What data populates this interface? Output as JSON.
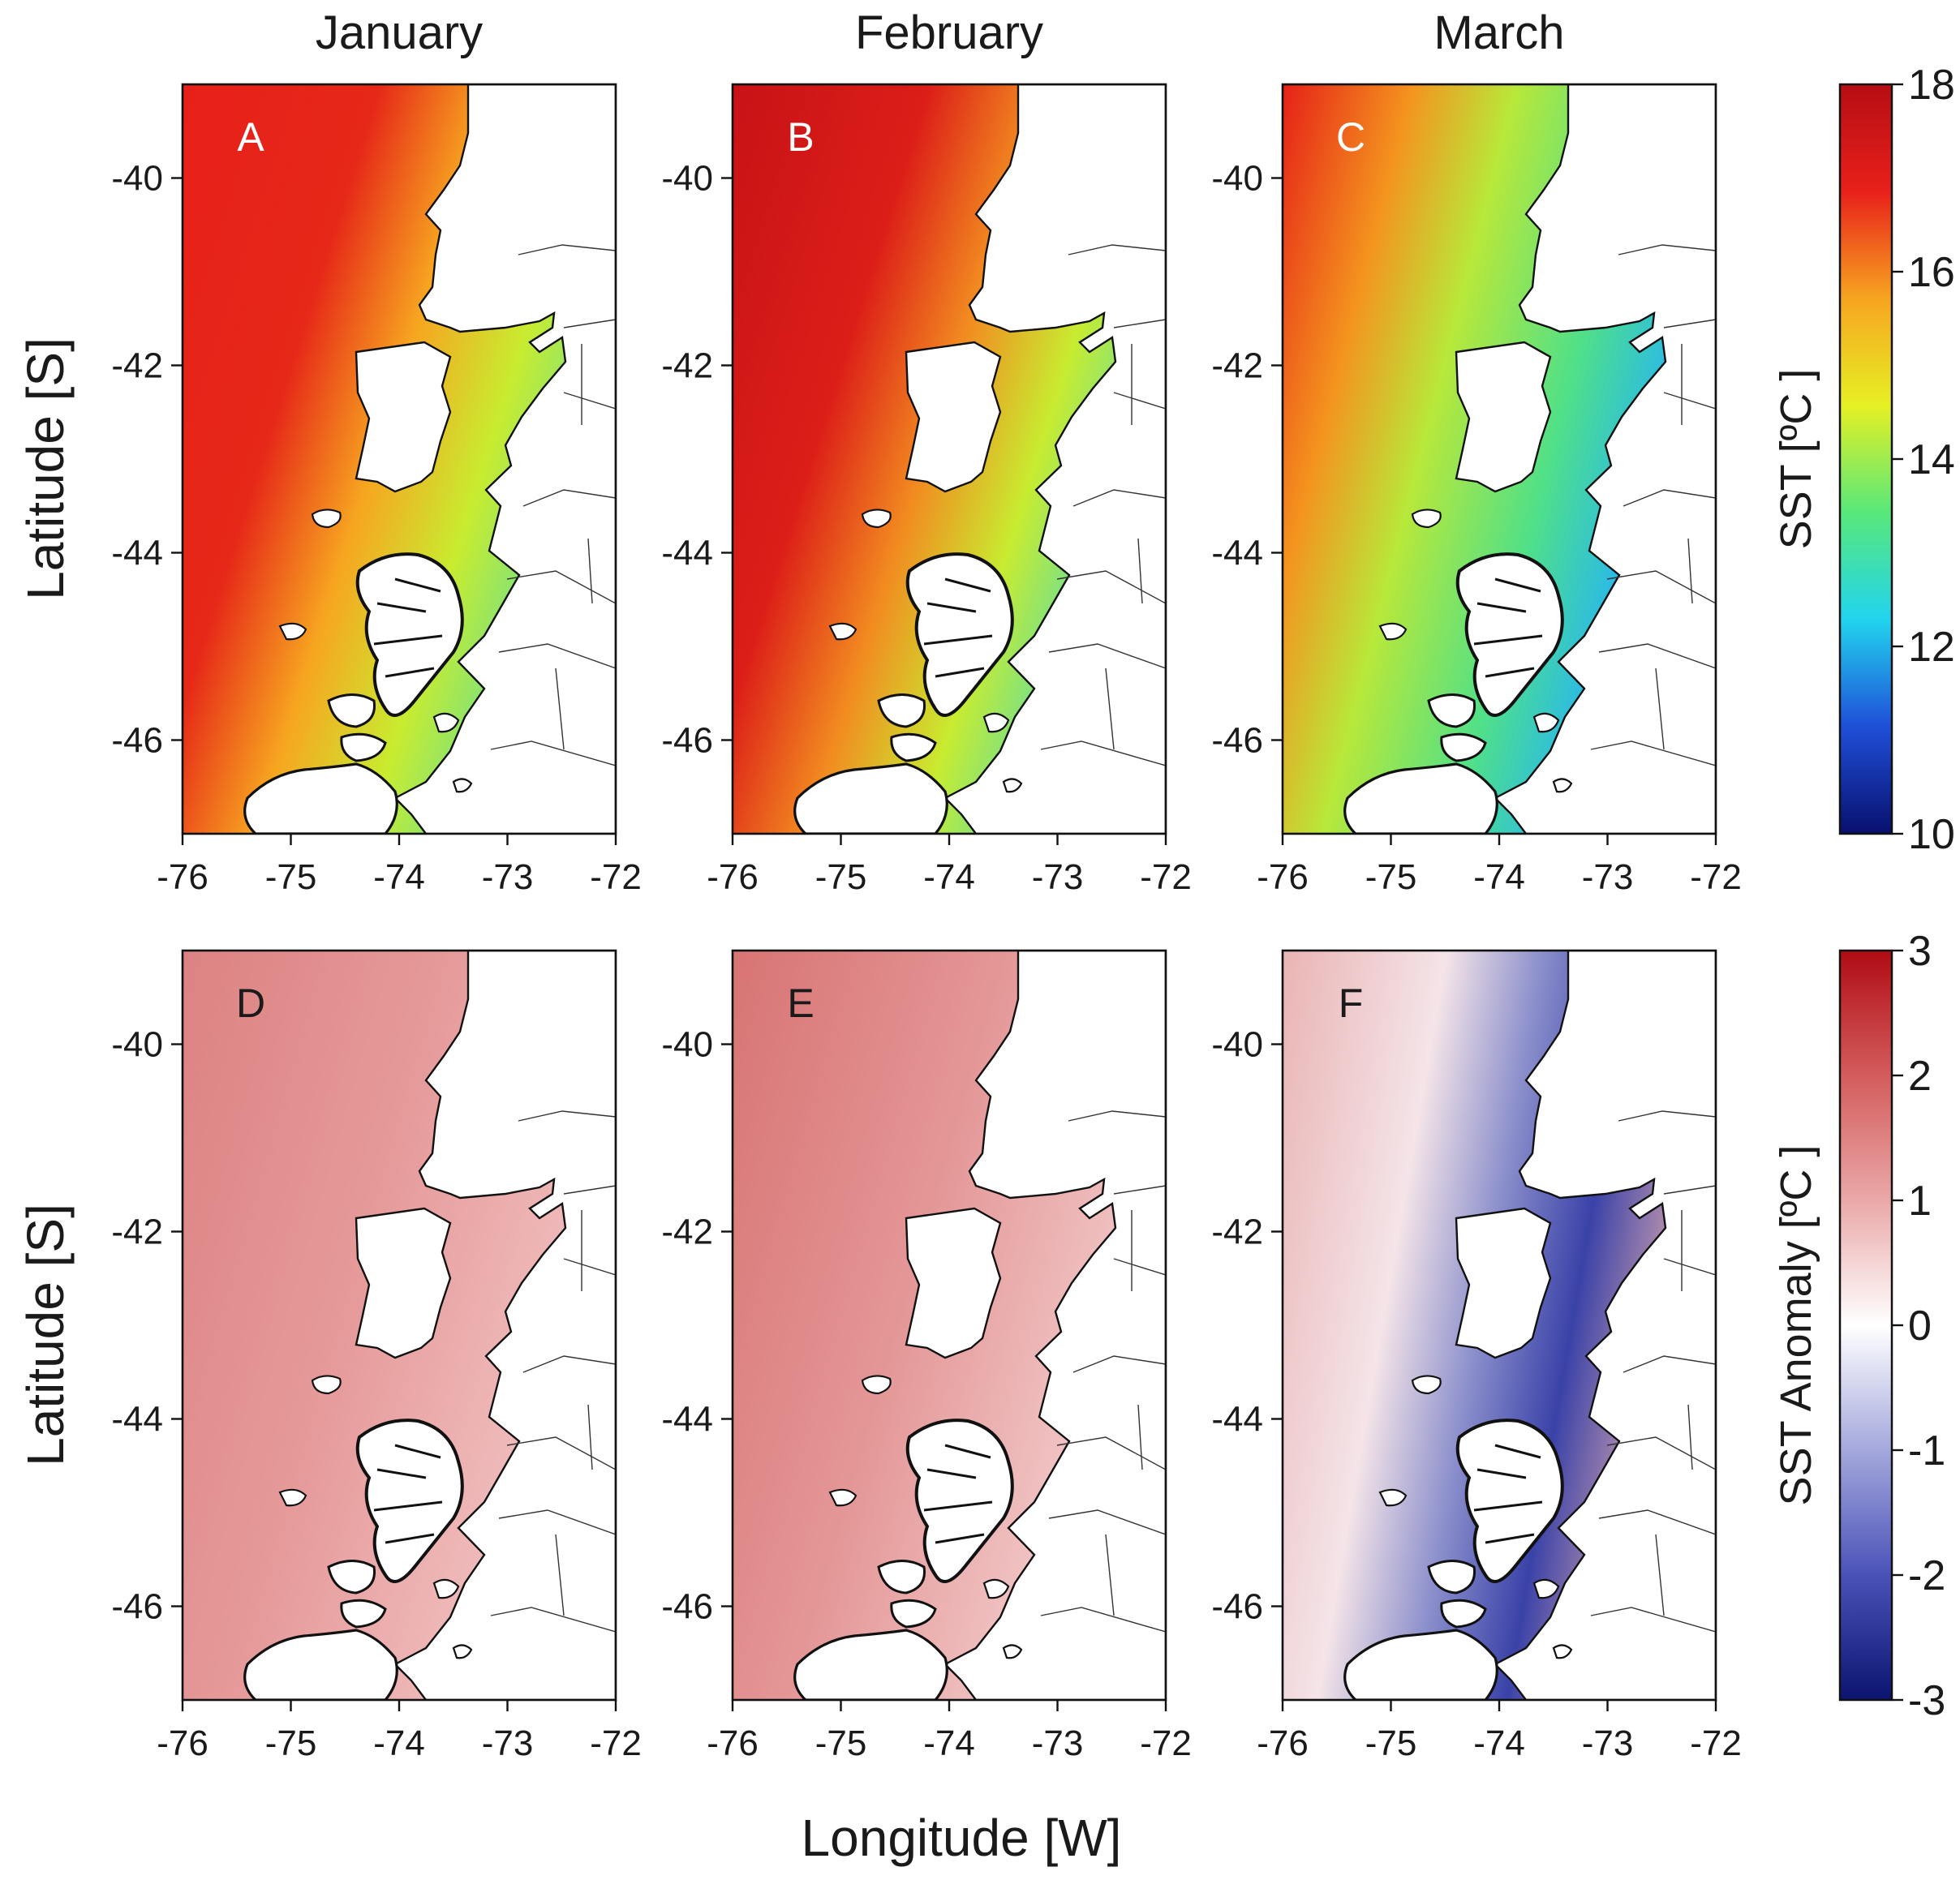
{
  "figure": {
    "column_titles": [
      "January",
      "February",
      "March"
    ],
    "y_axis_title": "Latitude [S]",
    "x_axis_title": "Longitude [W]",
    "lon_ticks": [
      "-76",
      "-75",
      "-74",
      "-73",
      "-72"
    ],
    "lat_ticks": [
      "-40",
      "-42",
      "-44",
      "-46"
    ],
    "lon_range": [
      -76,
      -72
    ],
    "lat_range": [
      -47,
      -39
    ]
  },
  "rows": [
    {
      "variable": "SST",
      "panels": [
        {
          "letter": "A",
          "month": "January"
        },
        {
          "letter": "B",
          "month": "February"
        },
        {
          "letter": "C",
          "month": "March"
        }
      ],
      "colorbar": {
        "title": "SST [ºC ]",
        "ticks": [
          "10",
          "12",
          "14",
          "16",
          "18"
        ],
        "range": [
          10,
          18
        ],
        "colors": [
          "#08106e",
          "#1f4fd8",
          "#22d4ee",
          "#58e87a",
          "#e6f024",
          "#f7a520",
          "#e8201a",
          "#b60e14"
        ]
      }
    },
    {
      "variable": "SST Anomaly",
      "panels": [
        {
          "letter": "D",
          "month": "January"
        },
        {
          "letter": "E",
          "month": "February"
        },
        {
          "letter": "F",
          "month": "March"
        }
      ],
      "colorbar": {
        "title": "SST Anomaly [ºC ]",
        "ticks": [
          "-3",
          "-2",
          "-1",
          "0",
          "1",
          "2",
          "3"
        ],
        "range": [
          -3,
          3
        ],
        "colors": [
          "#0c1470",
          "#4a52b8",
          "#a4a8dc",
          "#ffffff",
          "#eaa8a8",
          "#d45c5c",
          "#b00c14"
        ]
      }
    }
  ]
}
